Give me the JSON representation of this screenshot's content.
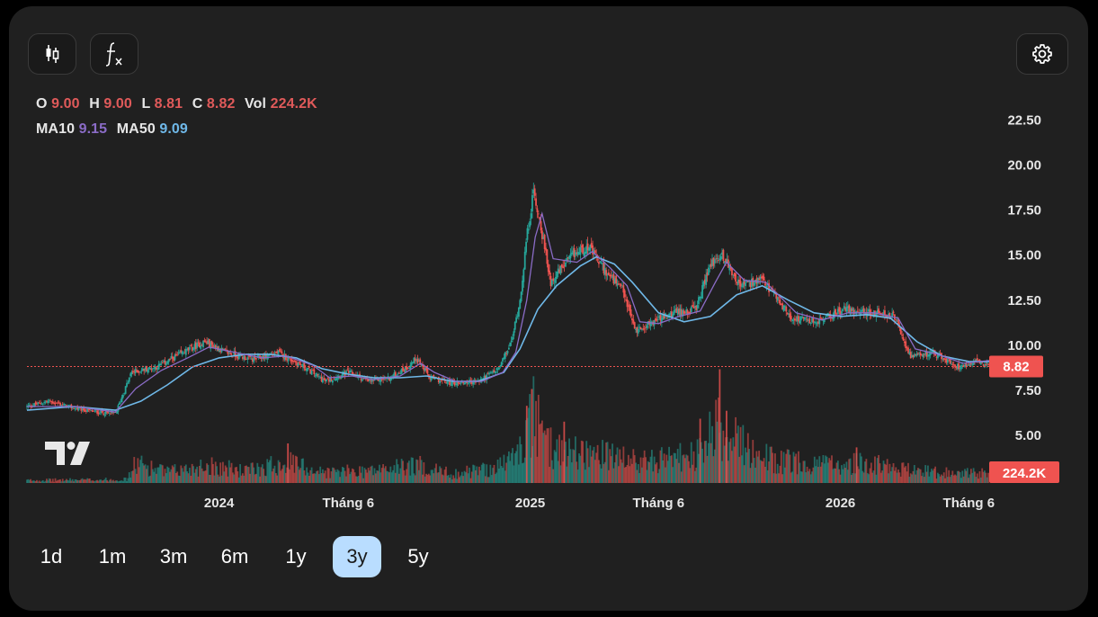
{
  "toolbar": {
    "candle_icon": "candlestick-icon",
    "fx_icon": "function-icon",
    "settings_icon": "gear-icon",
    "fx_label": "f"
  },
  "legend": {
    "o_label": "O",
    "o_value": "9.00",
    "h_label": "H",
    "h_value": "9.00",
    "l_label": "L",
    "l_value": "8.81",
    "c_label": "C",
    "c_value": "8.82",
    "vol_label": "Vol",
    "vol_value": "224.2K",
    "ma10_label": "MA10",
    "ma10_value": "9.15",
    "ma50_label": "MA50",
    "ma50_value": "9.09"
  },
  "colors": {
    "up": "#26a69a",
    "down": "#ef5350",
    "ma10": "#8b6cc7",
    "ma50": "#6fb8e8",
    "price_line": "#ef5350",
    "active_period": "#b9ddff"
  },
  "chart_data": {
    "type": "candlestick",
    "y_ticks": [
      "22.50",
      "20.00",
      "17.50",
      "15.00",
      "12.50",
      "10.00",
      "7.50",
      "5.00"
    ],
    "y_tick_values": [
      22.5,
      20,
      17.5,
      15,
      12.5,
      10,
      7.5,
      5
    ],
    "x_ticks": [
      "2024",
      "Tháng 6",
      "2025",
      "Tháng 6",
      "2026",
      "Tháng 6"
    ],
    "x_tick_dates": [
      "2024-01-01",
      "2024-06-01",
      "2025-01-01",
      "2025-06-01",
      "2026-01-01",
      "2026-06-01"
    ],
    "last_price": "8.82",
    "last_volume": "224.2K",
    "close_path": [
      [
        "2023-05-20",
        6.6
      ],
      [
        "2023-06-15",
        6.9
      ],
      [
        "2023-07-15",
        6.5
      ],
      [
        "2023-08-10",
        6.3
      ],
      [
        "2023-09-01",
        6.2
      ],
      [
        "2023-09-20",
        8.5
      ],
      [
        "2023-10-20",
        8.8
      ],
      [
        "2023-11-20",
        9.6
      ],
      [
        "2023-12-15",
        10.2
      ],
      [
        "2024-01-10",
        9.6
      ],
      [
        "2024-02-10",
        9.2
      ],
      [
        "2024-03-10",
        9.6
      ],
      [
        "2024-04-10",
        8.8
      ],
      [
        "2024-05-05",
        8.0
      ],
      [
        "2024-06-01",
        8.5
      ],
      [
        "2024-06-25",
        8.0
      ],
      [
        "2024-07-20",
        8.2
      ],
      [
        "2024-08-10",
        8.8
      ],
      [
        "2024-08-20",
        9.3
      ],
      [
        "2024-09-05",
        8.2
      ],
      [
        "2024-10-01",
        7.9
      ],
      [
        "2024-11-01",
        8.0
      ],
      [
        "2024-11-25",
        8.7
      ],
      [
        "2024-12-10",
        10.2
      ],
      [
        "2024-12-20",
        12.5
      ],
      [
        "2024-12-28",
        16.0
      ],
      [
        "2025-01-05",
        18.5
      ],
      [
        "2025-01-12",
        17.0
      ],
      [
        "2025-01-25",
        13.5
      ],
      [
        "2025-02-20",
        15.0
      ],
      [
        "2025-03-10",
        15.5
      ],
      [
        "2025-04-01",
        14.0
      ],
      [
        "2025-04-20",
        13.0
      ],
      [
        "2025-05-05",
        10.8
      ],
      [
        "2025-05-25",
        11.3
      ],
      [
        "2025-06-20",
        11.8
      ],
      [
        "2025-07-15",
        12.0
      ],
      [
        "2025-08-01",
        14.5
      ],
      [
        "2025-08-15",
        15.0
      ],
      [
        "2025-09-05",
        13.3
      ],
      [
        "2025-10-01",
        13.6
      ],
      [
        "2025-11-05",
        11.5
      ],
      [
        "2025-12-05",
        11.3
      ],
      [
        "2026-01-05",
        12.0
      ],
      [
        "2026-02-05",
        11.8
      ],
      [
        "2026-03-05",
        11.6
      ],
      [
        "2026-03-25",
        9.3
      ],
      [
        "2026-04-20",
        9.6
      ],
      [
        "2026-05-20",
        8.8
      ],
      [
        "2026-06-10",
        9.2
      ],
      [
        "2026-06-25",
        8.82
      ]
    ],
    "ma10_path": [
      [
        "2023-05-20",
        6.6
      ],
      [
        "2023-07-15",
        6.6
      ],
      [
        "2023-09-01",
        6.3
      ],
      [
        "2023-09-25",
        7.6
      ],
      [
        "2023-10-25",
        8.6
      ],
      [
        "2023-11-25",
        9.3
      ],
      [
        "2023-12-20",
        9.9
      ],
      [
        "2024-01-20",
        9.6
      ],
      [
        "2024-02-20",
        9.3
      ],
      [
        "2024-03-20",
        9.4
      ],
      [
        "2024-04-20",
        8.9
      ],
      [
        "2024-05-10",
        8.2
      ],
      [
        "2024-06-05",
        8.3
      ],
      [
        "2024-07-01",
        8.1
      ],
      [
        "2024-08-01",
        8.3
      ],
      [
        "2024-08-25",
        9.0
      ],
      [
        "2024-09-10",
        8.5
      ],
      [
        "2024-10-05",
        8.0
      ],
      [
        "2024-11-05",
        8.0
      ],
      [
        "2024-11-30",
        8.5
      ],
      [
        "2024-12-15",
        9.6
      ],
      [
        "2024-12-28",
        12.5
      ],
      [
        "2025-01-07",
        16.0
      ],
      [
        "2025-01-15",
        17.3
      ],
      [
        "2025-01-28",
        14.8
      ],
      [
        "2025-02-25",
        14.6
      ],
      [
        "2025-03-15",
        15.2
      ],
      [
        "2025-04-05",
        14.3
      ],
      [
        "2025-04-25",
        13.3
      ],
      [
        "2025-05-10",
        11.3
      ],
      [
        "2025-06-01",
        11.2
      ],
      [
        "2025-06-25",
        11.6
      ],
      [
        "2025-07-20",
        11.9
      ],
      [
        "2025-08-07",
        13.5
      ],
      [
        "2025-08-20",
        14.6
      ],
      [
        "2025-09-10",
        13.6
      ],
      [
        "2025-10-05",
        13.5
      ],
      [
        "2025-11-10",
        11.8
      ],
      [
        "2025-12-10",
        11.4
      ],
      [
        "2026-01-10",
        11.8
      ],
      [
        "2026-02-10",
        11.8
      ],
      [
        "2026-03-10",
        11.5
      ],
      [
        "2026-03-30",
        9.8
      ],
      [
        "2026-04-25",
        9.5
      ],
      [
        "2026-05-25",
        9.0
      ],
      [
        "2026-06-15",
        9.1
      ],
      [
        "2026-06-25",
        9.15
      ]
    ],
    "ma50_path": [
      [
        "2023-05-20",
        6.4
      ],
      [
        "2023-07-15",
        6.6
      ],
      [
        "2023-09-01",
        6.4
      ],
      [
        "2023-10-01",
        6.9
      ],
      [
        "2023-11-01",
        7.8
      ],
      [
        "2023-12-01",
        8.8
      ],
      [
        "2024-01-01",
        9.3
      ],
      [
        "2024-02-01",
        9.5
      ],
      [
        "2024-03-01",
        9.5
      ],
      [
        "2024-04-01",
        9.3
      ],
      [
        "2024-05-01",
        8.7
      ],
      [
        "2024-06-01",
        8.4
      ],
      [
        "2024-07-01",
        8.2
      ],
      [
        "2024-08-01",
        8.2
      ],
      [
        "2024-09-01",
        8.3
      ],
      [
        "2024-10-01",
        8.0
      ],
      [
        "2024-11-01",
        8.0
      ],
      [
        "2024-12-01",
        8.5
      ],
      [
        "2024-12-20",
        9.8
      ],
      [
        "2025-01-10",
        12.0
      ],
      [
        "2025-02-01",
        13.3
      ],
      [
        "2025-03-01",
        14.4
      ],
      [
        "2025-03-20",
        14.9
      ],
      [
        "2025-04-10",
        14.5
      ],
      [
        "2025-05-01",
        13.5
      ],
      [
        "2025-06-01",
        11.8
      ],
      [
        "2025-07-01",
        11.3
      ],
      [
        "2025-08-01",
        11.6
      ],
      [
        "2025-09-01",
        12.8
      ],
      [
        "2025-10-01",
        13.3
      ],
      [
        "2025-11-01",
        12.5
      ],
      [
        "2025-12-01",
        11.8
      ],
      [
        "2026-01-01",
        11.6
      ],
      [
        "2026-02-01",
        11.7
      ],
      [
        "2026-03-01",
        11.5
      ],
      [
        "2026-04-01",
        10.2
      ],
      [
        "2026-05-01",
        9.4
      ],
      [
        "2026-06-01",
        9.1
      ],
      [
        "2026-06-25",
        9.09
      ]
    ],
    "volume_path": [
      [
        "2023-05-20",
        0.3
      ],
      [
        "2023-09-15",
        0.4
      ],
      [
        "2023-09-25",
        2.2
      ],
      [
        "2023-11-01",
        1.2
      ],
      [
        "2023-12-20",
        2.0
      ],
      [
        "2024-02-01",
        1.3
      ],
      [
        "2024-03-20",
        2.4
      ],
      [
        "2024-05-01",
        1.2
      ],
      [
        "2024-07-01",
        1.4
      ],
      [
        "2024-08-20",
        2.0
      ],
      [
        "2024-10-01",
        1.0
      ],
      [
        "2024-11-25",
        1.8
      ],
      [
        "2024-12-20",
        3.5
      ],
      [
        "2025-01-05",
        7.5
      ],
      [
        "2025-01-20",
        4.0
      ],
      [
        "2025-03-01",
        3.5
      ],
      [
        "2025-05-01",
        2.4
      ],
      [
        "2025-06-15",
        2.6
      ],
      [
        "2025-07-20",
        3.2
      ],
      [
        "2025-08-10",
        6.5
      ],
      [
        "2025-09-05",
        4.2
      ],
      [
        "2025-10-15",
        2.5
      ],
      [
        "2025-12-15",
        2.0
      ],
      [
        "2026-02-01",
        2.2
      ],
      [
        "2026-04-01",
        1.3
      ],
      [
        "2026-06-25",
        1.0
      ]
    ],
    "volume_spikes": [
      [
        "2025-01-03",
        9.5
      ],
      [
        "2024-12-28",
        7.8
      ],
      [
        "2025-08-12",
        11.5
      ],
      [
        "2025-08-20",
        7.3
      ],
      [
        "2025-07-20",
        6.5
      ],
      [
        "2025-02-10",
        6.2
      ],
      [
        "2024-03-22",
        4.0
      ],
      [
        "2026-01-20",
        3.6
      ]
    ]
  },
  "periods": [
    {
      "label": "1d",
      "active": false
    },
    {
      "label": "1m",
      "active": false
    },
    {
      "label": "3m",
      "active": false
    },
    {
      "label": "6m",
      "active": false
    },
    {
      "label": "1y",
      "active": false
    },
    {
      "label": "3y",
      "active": true
    },
    {
      "label": "5y",
      "active": false
    }
  ]
}
